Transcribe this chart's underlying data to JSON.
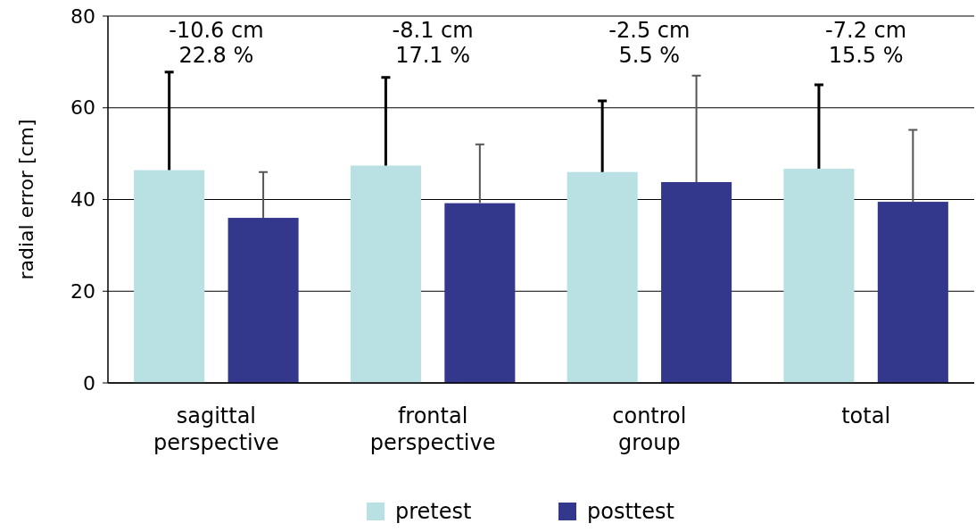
{
  "chart_data": {
    "type": "bar",
    "ylabel": "radial error [cm]",
    "categories": [
      "sagittal perspective",
      "frontal perspective",
      "control group",
      "total"
    ],
    "series": [
      {
        "name": "pretest",
        "color": "#b9e0e3",
        "values": [
          46.4,
          47.4,
          46.0,
          46.7
        ],
        "errors": [
          [
            46.4,
            67.8
          ],
          [
            47.4,
            66.6
          ],
          [
            46.0,
            61.5
          ],
          [
            46.7,
            65.0
          ]
        ]
      },
      {
        "name": "posttest",
        "color": "#34388c",
        "values": [
          36.0,
          39.2,
          43.8,
          39.5
        ],
        "errors": [
          [
            36.0,
            46.0
          ],
          [
            39.2,
            52.0
          ],
          [
            43.8,
            67.0
          ],
          [
            39.5,
            55.2
          ]
        ]
      }
    ],
    "ylim": [
      0,
      80
    ],
    "yticks": [
      0,
      20,
      40,
      60,
      80
    ],
    "grid": "y",
    "legend": "bottom",
    "annotations": [
      "-10.6 cm\n22.8 %",
      "-8.1 cm\n17.1 %",
      "-2.5 cm\n5.5 %",
      "-7.2 cm\n15.5 %"
    ]
  }
}
